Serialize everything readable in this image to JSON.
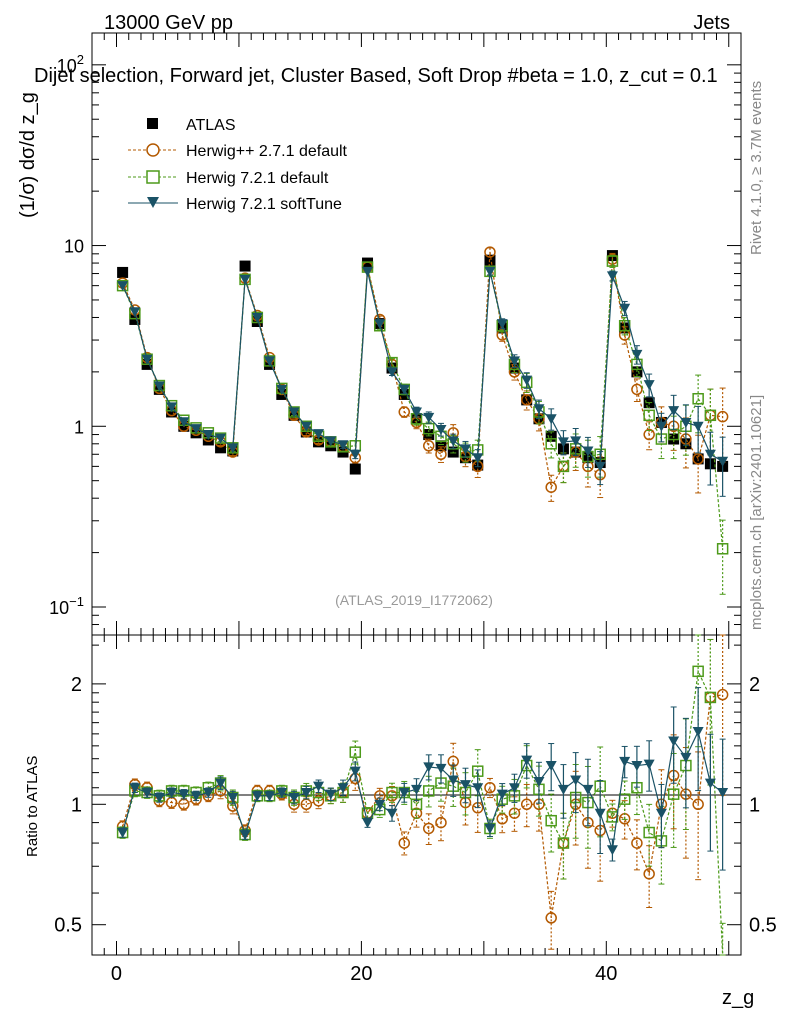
{
  "header": {
    "energy": "13000 GeV pp",
    "category": "Jets",
    "selection_title": "Dijet selection, Forward jet, Cluster Based, Soft Drop #beta = 1.0, z_cut = 0.1",
    "analysis_id": "(ATLAS_2019_I1772062)",
    "rivet_label": "Rivet 4.1.0, ≥ 3.7M events",
    "mcplots_label": "mcplots.cern.ch [arXiv:2401.10621]"
  },
  "legend": [
    {
      "name": "ATLAS",
      "color": "#000000",
      "marker": "square-filled"
    },
    {
      "name": "Herwig++ 2.7.1 default",
      "color": "#b35900",
      "marker": "circle-open"
    },
    {
      "name": "Herwig 7.2.1 default",
      "color": "#4d9a1a",
      "marker": "square-open"
    },
    {
      "name": "Herwig 7.2.1 softTune",
      "color": "#1a5266",
      "marker": "triangle-down-filled"
    }
  ],
  "axes": {
    "ylabel_main": "(1/σ) dσ/d z_g",
    "ylabel_ratio": "Ratio to ATLAS",
    "xlabel": "z_g",
    "x_ticks": [
      "0",
      "20",
      "40"
    ],
    "main_ticks": [
      "10^-1",
      "1",
      "10",
      "10^2"
    ],
    "ratio_ticks": [
      "0.5",
      "1",
      "2"
    ]
  },
  "chart_data": {
    "type": "scatter",
    "x": [
      0.5,
      1.5,
      2.5,
      3.5,
      4.5,
      5.5,
      6.5,
      7.5,
      8.5,
      9.5,
      10.5,
      11.5,
      12.5,
      13.5,
      14.5,
      15.5,
      16.5,
      17.5,
      18.5,
      19.5,
      20.5,
      21.5,
      22.5,
      23.5,
      24.5,
      25.5,
      26.5,
      27.5,
      28.5,
      29.5,
      30.5,
      31.5,
      32.5,
      33.5,
      34.5,
      35.5,
      36.5,
      37.5,
      38.5,
      39.5,
      40.5,
      41.5,
      42.5,
      43.5,
      44.5,
      45.5,
      46.5,
      47.5,
      48.5,
      49.5
    ],
    "xlim": [
      -2,
      51
    ],
    "ylim_main": [
      0.07,
      150
    ],
    "ylim_ratio": [
      0.42,
      2.65
    ],
    "yscale_main": "log",
    "yscale_ratio": "log",
    "series": [
      {
        "name": "ATLAS",
        "values": [
          7.1,
          3.9,
          2.2,
          1.6,
          1.2,
          1.0,
          0.92,
          0.84,
          0.76,
          0.73,
          7.7,
          3.8,
          2.2,
          1.5,
          1.15,
          0.93,
          0.82,
          0.78,
          0.72,
          0.58,
          8.0,
          3.7,
          2.1,
          1.5,
          1.1,
          0.9,
          0.78,
          0.72,
          0.67,
          0.61,
          8.3,
          3.5,
          2.1,
          1.4,
          1.1,
          0.88,
          0.75,
          0.72,
          0.67,
          0.63,
          8.8,
          3.5,
          2.0,
          1.35,
          1.05,
          0.85,
          0.8,
          0.66,
          0.62,
          0.6
        ]
      },
      {
        "name": "Herwig++ 2.7.1 default",
        "values": [
          6.2,
          4.4,
          2.4,
          1.62,
          1.22,
          1.0,
          0.95,
          0.88,
          0.82,
          0.72,
          6.6,
          4.1,
          2.4,
          1.6,
          1.15,
          0.93,
          0.84,
          0.82,
          0.77,
          0.67,
          7.6,
          3.9,
          2.2,
          1.2,
          1.05,
          0.78,
          0.7,
          0.92,
          0.68,
          0.6,
          9.2,
          3.2,
          2.0,
          1.4,
          1.1,
          0.46,
          0.6,
          0.72,
          0.6,
          0.54,
          8.4,
          3.2,
          1.6,
          0.9,
          1.05,
          1.0,
          0.85,
          0.66,
          1.15,
          1.13
        ]
      },
      {
        "name": "Herwig 7.2.1 default",
        "values": [
          6.0,
          4.2,
          2.35,
          1.68,
          1.3,
          1.08,
          0.98,
          0.92,
          0.86,
          0.76,
          6.5,
          4.0,
          2.3,
          1.62,
          1.2,
          1.0,
          0.88,
          0.82,
          0.77,
          0.78,
          7.6,
          3.6,
          2.25,
          1.6,
          1.1,
          0.97,
          0.88,
          0.8,
          0.72,
          0.74,
          7.2,
          3.6,
          2.2,
          1.75,
          1.2,
          0.8,
          0.6,
          0.75,
          0.68,
          0.7,
          8.2,
          3.6,
          2.2,
          1.15,
          0.85,
          0.9,
          1.0,
          1.42,
          1.15,
          0.21
        ]
      },
      {
        "name": "Herwig 7.2.1 softTune",
        "values": [
          6.0,
          4.3,
          2.35,
          1.67,
          1.28,
          1.06,
          0.97,
          0.9,
          0.86,
          0.76,
          6.5,
          4.0,
          2.3,
          1.6,
          1.2,
          1.0,
          0.91,
          0.83,
          0.79,
          0.7,
          7.2,
          3.7,
          2.0,
          1.6,
          1.2,
          1.12,
          0.96,
          0.83,
          0.75,
          0.67,
          7.2,
          3.7,
          2.3,
          1.8,
          1.25,
          1.1,
          0.82,
          0.83,
          0.73,
          0.6,
          6.8,
          4.5,
          2.5,
          1.7,
          1.0,
          1.22,
          1.05,
          1.0,
          0.7,
          0.64
        ]
      }
    ],
    "ratio": [
      {
        "name": "Herwig++ 2.7.1 default",
        "values": [
          0.88,
          1.12,
          1.1,
          1.02,
          1.01,
          1.0,
          1.03,
          1.05,
          1.08,
          0.99,
          0.86,
          1.08,
          1.08,
          1.06,
          1.0,
          1.0,
          1.02,
          1.05,
          1.07,
          1.16,
          0.95,
          1.05,
          1.05,
          0.8,
          0.95,
          0.87,
          0.9,
          1.28,
          1.01,
          0.98,
          1.1,
          0.92,
          0.95,
          1.0,
          1.0,
          0.52,
          0.8,
          1.0,
          0.9,
          0.86,
          0.95,
          0.92,
          0.8,
          0.67,
          1.0,
          1.18,
          1.06,
          1.0,
          1.85,
          1.88
        ]
      },
      {
        "name": "Herwig 7.2.1 default",
        "values": [
          0.85,
          1.08,
          1.07,
          1.05,
          1.08,
          1.08,
          1.07,
          1.1,
          1.13,
          1.04,
          0.84,
          1.05,
          1.05,
          1.08,
          1.04,
          1.08,
          1.07,
          1.05,
          1.07,
          1.35,
          0.95,
          0.97,
          1.07,
          1.07,
          1.0,
          1.08,
          1.13,
          1.11,
          1.07,
          1.21,
          0.87,
          1.03,
          1.05,
          1.25,
          1.09,
          0.91,
          0.8,
          1.04,
          1.01,
          1.11,
          0.93,
          1.03,
          1.1,
          0.85,
          0.81,
          1.06,
          1.25,
          2.15,
          1.85,
          0.35
        ]
      },
      {
        "name": "Herwig 7.2.1 softTune",
        "values": [
          0.85,
          1.1,
          1.07,
          1.04,
          1.07,
          1.06,
          1.05,
          1.07,
          1.13,
          1.04,
          0.84,
          1.05,
          1.05,
          1.07,
          1.04,
          1.07,
          1.11,
          1.06,
          1.1,
          1.21,
          0.9,
          1.0,
          0.95,
          1.07,
          1.09,
          1.24,
          1.23,
          1.15,
          1.12,
          1.1,
          0.87,
          1.06,
          1.1,
          1.29,
          1.14,
          1.25,
          1.09,
          1.15,
          1.09,
          0.95,
          0.77,
          1.28,
          1.25,
          1.26,
          0.95,
          1.44,
          1.31,
          1.52,
          1.13,
          1.07
        ]
      }
    ],
    "ratio_error_frac": [
      0.03,
      0.03,
      0.03,
      0.03,
      0.03,
      0.03,
      0.03,
      0.03,
      0.04,
      0.04,
      0.03,
      0.03,
      0.03,
      0.03,
      0.04,
      0.04,
      0.04,
      0.04,
      0.05,
      0.06,
      0.03,
      0.04,
      0.05,
      0.06,
      0.07,
      0.08,
      0.09,
      0.1,
      0.11,
      0.12,
      0.05,
      0.07,
      0.09,
      0.11,
      0.13,
      0.15,
      0.17,
      0.19,
      0.21,
      0.23,
      0.07,
      0.1,
      0.13,
      0.16,
      0.2,
      0.24,
      0.28,
      0.32,
      0.36,
      0.4
    ]
  }
}
